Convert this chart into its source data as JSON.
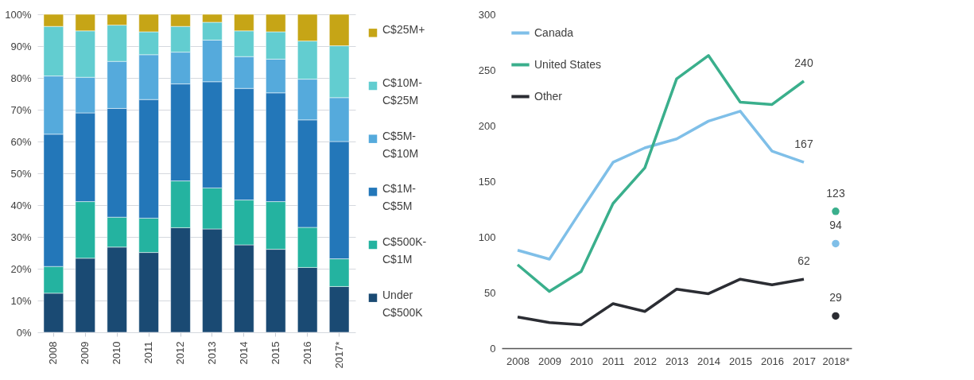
{
  "chart_data": [
    {
      "type": "bar",
      "stacked": true,
      "categories": [
        "2008",
        "2009",
        "2010",
        "2011",
        "2012",
        "2013",
        "2014",
        "2015",
        "2016",
        "2017*"
      ],
      "series": [
        {
          "name": "Under C$500K",
          "color": "#1a4a73",
          "values": [
            12.3,
            23.3,
            26.8,
            25.1,
            32.9,
            32.5,
            27.5,
            26.1,
            20.4,
            14.4
          ]
        },
        {
          "name": "C$500K-C$1M",
          "color": "#24b3a0",
          "values": [
            8.4,
            17.8,
            9.4,
            10.8,
            14.7,
            12.9,
            14.1,
            15.0,
            12.6,
            8.7
          ]
        },
        {
          "name": "C$1M-C$5M",
          "color": "#2377b9",
          "values": [
            41.6,
            27.9,
            34.2,
            37.3,
            30.5,
            33.4,
            35.1,
            34.2,
            33.8,
            36.9
          ]
        },
        {
          "name": "C$5M-C$10M",
          "color": "#55aadc",
          "values": [
            18.3,
            11.2,
            14.8,
            14.1,
            10.0,
            13.1,
            10.0,
            10.6,
            12.8,
            13.8
          ]
        },
        {
          "name": "C$10M-C$25M",
          "color": "#62cdd0",
          "values": [
            15.6,
            14.6,
            11.4,
            7.2,
            8.1,
            5.6,
            8.1,
            8.6,
            12.0,
            16.3
          ]
        },
        {
          "name": "C$25M+",
          "color": "#c6a516",
          "values": [
            3.8,
            5.2,
            3.4,
            5.5,
            3.8,
            2.5,
            5.2,
            5.5,
            8.4,
            9.9
          ]
        }
      ],
      "ylim": [
        0,
        100
      ],
      "yticks": [
        {
          "value": 0,
          "label": "0%"
        },
        {
          "value": 10,
          "label": "10%"
        },
        {
          "value": 20,
          "label": "20%"
        },
        {
          "value": 30,
          "label": "30%"
        },
        {
          "value": 40,
          "label": "40%"
        },
        {
          "value": 50,
          "label": "50%"
        },
        {
          "value": 60,
          "label": "60%"
        },
        {
          "value": 70,
          "label": "70%"
        },
        {
          "value": 80,
          "label": "80%"
        },
        {
          "value": 90,
          "label": "90%"
        },
        {
          "value": 100,
          "label": "100%"
        }
      ],
      "grid": "y",
      "legend": "right"
    },
    {
      "type": "line",
      "categories": [
        "2008",
        "2009",
        "2010",
        "2011",
        "2012",
        "2013",
        "2014",
        "2015",
        "2016",
        "2017",
        "2018*"
      ],
      "series": [
        {
          "name": "Canada",
          "color": "#7fbfe8",
          "values": [
            88,
            80,
            124,
            167,
            180,
            188,
            204,
            213,
            177,
            167,
            null
          ],
          "value_labels": [
            null,
            null,
            null,
            null,
            null,
            null,
            null,
            null,
            null,
            "167",
            null
          ]
        },
        {
          "name": "United States",
          "color": "#3aaf8c",
          "values": [
            75,
            51,
            69,
            130,
            162,
            242,
            263,
            221,
            219,
            240,
            null
          ],
          "value_labels": [
            null,
            null,
            null,
            null,
            null,
            null,
            null,
            null,
            null,
            "240",
            null
          ]
        },
        {
          "name": "Other",
          "color": "#2b2d33",
          "values": [
            28,
            23,
            21,
            40,
            33,
            53,
            49,
            62,
            57,
            62,
            null
          ],
          "value_labels": [
            null,
            null,
            null,
            null,
            null,
            null,
            null,
            null,
            null,
            "62",
            null
          ]
        },
        {
          "type": "scatter",
          "color": "#3aaf8c",
          "x": [
            "2018*"
          ],
          "values": [
            123
          ],
          "value_labels": [
            "123"
          ]
        },
        {
          "type": "scatter",
          "color": "#7fbfe8",
          "x": [
            "2018*"
          ],
          "values": [
            94
          ],
          "value_labels": [
            "94"
          ]
        },
        {
          "type": "scatter",
          "color": "#2b2d33",
          "x": [
            "2018*"
          ],
          "values": [
            29
          ],
          "value_labels": [
            "29"
          ]
        }
      ],
      "ylim": [
        0,
        300
      ],
      "yticks": [
        0,
        50,
        100,
        150,
        200,
        250,
        300
      ],
      "grid": false,
      "legend": "top left"
    }
  ]
}
